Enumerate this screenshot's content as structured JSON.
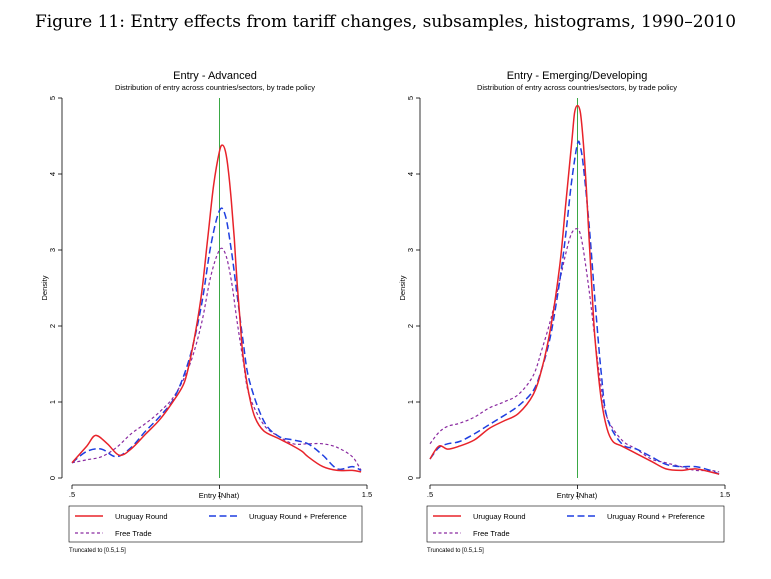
{
  "figure_title": "Figure 11: Entry effects from tariff changes, subsamples, histograms, 1990–2010",
  "colors": {
    "uruguay": "#e8232a",
    "preference": "#1f3fe0",
    "free": "#8a2aa0",
    "vline": "#3aa845",
    "axis": "#000000"
  },
  "chart_data": [
    {
      "type": "line",
      "title": "Entry - Advanced",
      "subtitle": "Distribution of entry across countries/sectors, by trade policy",
      "xlabel": "Entry (Nhat)",
      "ylabel": "Density",
      "xlim": [
        0.5,
        1.5
      ],
      "ylim": [
        0,
        5
      ],
      "xticks": [
        ".5",
        "1",
        "1.5"
      ],
      "yticks": [
        "0",
        "1",
        "2",
        "3",
        "4",
        "5"
      ],
      "reference_line_x": 1,
      "note": "Truncated to [0.5,1.5]",
      "legend": [
        "Uruguay Round",
        "Uruguay Round + Preference",
        "Free Trade"
      ],
      "series": [
        {
          "name": "Uruguay Round",
          "style": "solid",
          "x": [
            0.5,
            0.55,
            0.58,
            0.62,
            0.66,
            0.7,
            0.75,
            0.8,
            0.85,
            0.88,
            0.9,
            0.92,
            0.94,
            0.96,
            0.98,
            1.0,
            1.01,
            1.02,
            1.03,
            1.04,
            1.05,
            1.06,
            1.07,
            1.08,
            1.1,
            1.12,
            1.15,
            1.2,
            1.25,
            1.28,
            1.3,
            1.35,
            1.4,
            1.45,
            1.48
          ],
          "y": [
            0.2,
            0.42,
            0.56,
            0.45,
            0.3,
            0.38,
            0.58,
            0.78,
            1.05,
            1.25,
            1.55,
            1.95,
            2.45,
            3.15,
            3.85,
            4.3,
            4.38,
            4.3,
            4.05,
            3.65,
            3.15,
            2.55,
            2.05,
            1.6,
            1.1,
            0.8,
            0.62,
            0.52,
            0.42,
            0.35,
            0.28,
            0.15,
            0.1,
            0.1,
            0.08
          ]
        },
        {
          "name": "Uruguay Round + Preference",
          "style": "dashed",
          "x": [
            0.5,
            0.55,
            0.6,
            0.65,
            0.7,
            0.75,
            0.8,
            0.85,
            0.9,
            0.94,
            0.97,
            1.0,
            1.02,
            1.04,
            1.06,
            1.08,
            1.1,
            1.15,
            1.2,
            1.25,
            1.3,
            1.35,
            1.4,
            1.45,
            1.48
          ],
          "y": [
            0.2,
            0.35,
            0.38,
            0.28,
            0.4,
            0.62,
            0.82,
            1.08,
            1.6,
            2.3,
            3.05,
            3.52,
            3.45,
            3.0,
            2.4,
            1.8,
            1.3,
            0.75,
            0.55,
            0.5,
            0.45,
            0.3,
            0.12,
            0.15,
            0.1
          ]
        },
        {
          "name": "Free Trade",
          "style": "short-dashed",
          "x": [
            0.5,
            0.55,
            0.6,
            0.65,
            0.7,
            0.75,
            0.8,
            0.85,
            0.9,
            0.94,
            0.97,
            1.0,
            1.02,
            1.04,
            1.06,
            1.08,
            1.1,
            1.15,
            1.2,
            1.25,
            1.3,
            1.35,
            1.4,
            1.45,
            1.48
          ],
          "y": [
            0.2,
            0.24,
            0.28,
            0.4,
            0.58,
            0.72,
            0.88,
            1.1,
            1.5,
            2.05,
            2.65,
            3.0,
            2.95,
            2.6,
            2.05,
            1.55,
            1.1,
            0.7,
            0.55,
            0.45,
            0.45,
            0.45,
            0.4,
            0.28,
            0.1
          ]
        }
      ]
    },
    {
      "type": "line",
      "title": "Entry - Emerging/Developing",
      "subtitle": "Distribution of entry across countries/sectors, by trade policy",
      "xlabel": "Entry (Nhat)",
      "ylabel": "Density",
      "xlim": [
        0.5,
        1.5
      ],
      "ylim": [
        0,
        5
      ],
      "xticks": [
        ".5",
        "1",
        "1.5"
      ],
      "yticks": [
        "0",
        "1",
        "2",
        "3",
        "4",
        "5"
      ],
      "reference_line_x": 1,
      "note": "Truncated to [0.5,1.5]",
      "legend": [
        "Uruguay Round",
        "Uruguay Round + Preference",
        "Free Trade"
      ],
      "series": [
        {
          "name": "Uruguay Round",
          "style": "solid",
          "x": [
            0.5,
            0.53,
            0.56,
            0.6,
            0.65,
            0.7,
            0.75,
            0.8,
            0.85,
            0.88,
            0.91,
            0.94,
            0.96,
            0.98,
            0.99,
            1.0,
            1.01,
            1.02,
            1.03,
            1.04,
            1.05,
            1.06,
            1.08,
            1.1,
            1.12,
            1.15,
            1.2,
            1.25,
            1.3,
            1.35,
            1.4,
            1.45,
            1.48
          ],
          "y": [
            0.25,
            0.42,
            0.38,
            0.42,
            0.5,
            0.65,
            0.75,
            0.85,
            1.1,
            1.45,
            2.0,
            2.8,
            3.6,
            4.4,
            4.8,
            4.9,
            4.8,
            4.4,
            3.8,
            3.1,
            2.4,
            1.8,
            1.05,
            0.65,
            0.48,
            0.42,
            0.32,
            0.22,
            0.12,
            0.1,
            0.12,
            0.08,
            0.05
          ]
        },
        {
          "name": "Uruguay Round + Preference",
          "style": "dashed",
          "x": [
            0.5,
            0.53,
            0.56,
            0.6,
            0.65,
            0.7,
            0.75,
            0.8,
            0.85,
            0.88,
            0.91,
            0.94,
            0.96,
            0.98,
            1.0,
            1.01,
            1.02,
            1.04,
            1.06,
            1.08,
            1.1,
            1.15,
            1.2,
            1.25,
            1.3,
            1.35,
            1.4,
            1.45,
            1.48
          ],
          "y": [
            0.25,
            0.4,
            0.45,
            0.48,
            0.58,
            0.7,
            0.82,
            0.95,
            1.15,
            1.45,
            1.9,
            2.6,
            3.2,
            3.9,
            4.4,
            4.35,
            4.1,
            3.3,
            2.3,
            1.4,
            0.8,
            0.45,
            0.38,
            0.28,
            0.18,
            0.15,
            0.15,
            0.1,
            0.05
          ]
        },
        {
          "name": "Free Trade",
          "style": "short-dashed",
          "x": [
            0.5,
            0.53,
            0.56,
            0.6,
            0.65,
            0.7,
            0.75,
            0.8,
            0.85,
            0.88,
            0.91,
            0.94,
            0.96,
            0.98,
            1.0,
            1.01,
            1.02,
            1.04,
            1.06,
            1.08,
            1.1,
            1.15,
            1.2,
            1.25,
            1.3,
            1.35,
            1.4,
            1.45,
            1.48
          ],
          "y": [
            0.45,
            0.6,
            0.68,
            0.72,
            0.8,
            0.92,
            1.0,
            1.1,
            1.35,
            1.7,
            2.1,
            2.6,
            2.95,
            3.22,
            3.28,
            3.2,
            3.0,
            2.45,
            1.8,
            1.2,
            0.8,
            0.5,
            0.38,
            0.25,
            0.2,
            0.15,
            0.1,
            0.1,
            0.08
          ]
        }
      ]
    }
  ]
}
